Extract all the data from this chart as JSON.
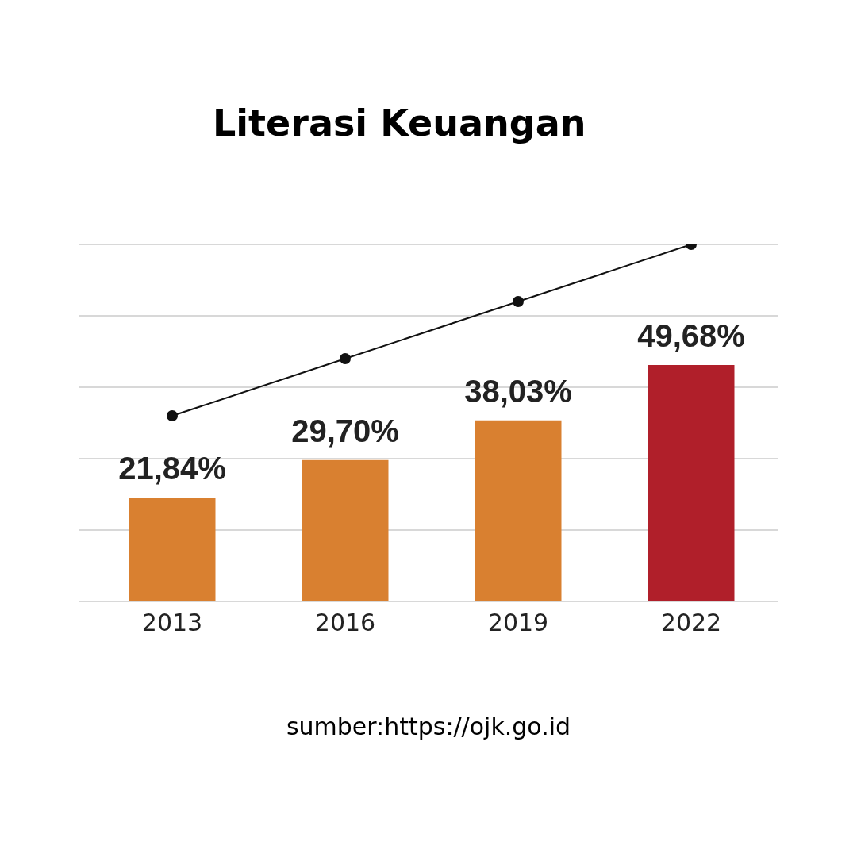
{
  "chart_data": {
    "type": "bar",
    "title": "Literasi Keuangan",
    "categories": [
      "2013",
      "2016",
      "2019",
      "2022"
    ],
    "series": [
      {
        "colors": [
          "#d98030",
          "#d98030",
          "#d98030",
          "#b01f2a"
        ],
        "values": [
          21.84,
          29.7,
          38.03,
          49.68
        ],
        "value_labels": [
          "21,84%",
          "29,70%",
          "38,03%",
          "49,68%"
        ]
      },
      {
        "type": "line",
        "color": "#111111",
        "values": [
          39,
          51,
          63,
          75
        ]
      }
    ],
    "ylim": [
      0,
      75
    ],
    "yticks": [
      {
        "value": 0,
        "label": null
      },
      {
        "value": 15,
        "label": null
      },
      {
        "value": 30,
        "label": null
      },
      {
        "value": 45,
        "label": null
      },
      {
        "value": 60,
        "label": null
      },
      {
        "value": 75,
        "label": null
      }
    ],
    "grid": "y",
    "marker": "circle",
    "tick_labels": "x",
    "annotations": [
      "sumber:https://ojk.go.id"
    ]
  }
}
